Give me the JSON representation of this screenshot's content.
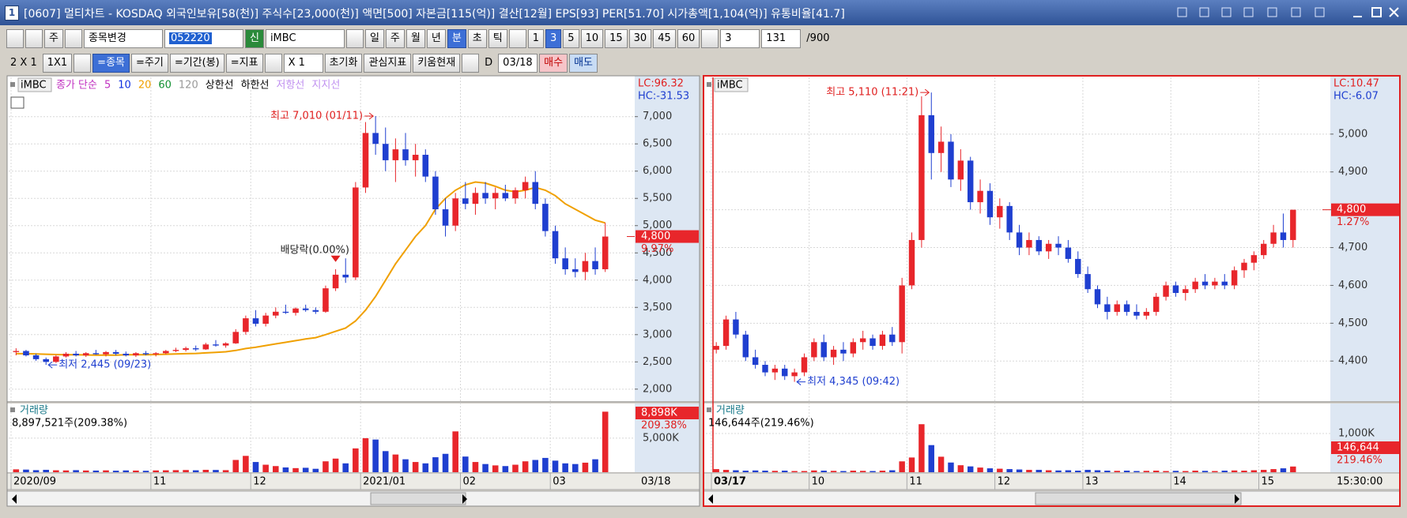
{
  "window": {
    "number": "1",
    "title": "[0607] 멀티차트 - KOSDAQ 외국인보유[58(천)] 주식수[23,000(천)] 액면[500] 자본금[115(억)] 결산[12월] EPS[93] PER[51.70] 시가총액[1,104(억)] 유통비율[41.7]"
  },
  "toolbar1": {
    "items": [
      "주",
      "종목변경",
      "052220",
      "신",
      "iMBC",
      "일",
      "주",
      "월",
      "년",
      "분",
      "초",
      "틱",
      "1",
      "3",
      "5",
      "10",
      "15",
      "30",
      "45",
      "60",
      "3",
      "131",
      "/900"
    ]
  },
  "toolbar2": {
    "items": [
      "2 X 1",
      "1X1",
      "=종목",
      "=주기",
      "=기간(봉)",
      "=지표",
      "X 1",
      "초기화",
      "관심지표",
      "키움현재",
      "D",
      "03/18",
      "매수",
      "매도"
    ]
  },
  "left": {
    "type": "candlestick",
    "name": "iMBC",
    "legend": [
      "종가 단순",
      "5",
      "10",
      "20",
      "60",
      "120",
      "상한선",
      "하한선",
      "저항선",
      "지지선"
    ],
    "legend_colors": [
      "#c030c0",
      "#c030c0",
      "#1030e0",
      "#f0a000",
      "#109030",
      "#999999",
      "#000000",
      "#000000",
      "#c090f0",
      "#c090f0"
    ],
    "lc": "LC:96.32",
    "hc": "HC:-31.53",
    "up_color": "#e8262b",
    "down_color": "#1f3fd0",
    "ylim": [
      1780,
      7720
    ],
    "yticks": [
      {
        "value": 2000,
        "label": "2,000"
      },
      {
        "value": 2500,
        "label": "2,500"
      },
      {
        "value": 3000,
        "label": "3,000"
      },
      {
        "value": 3500,
        "label": "3,500"
      },
      {
        "value": 4000,
        "label": "4,000"
      },
      {
        "value": 4500,
        "label": "4,500"
      },
      {
        "value": 5000,
        "label": "5,000"
      },
      {
        "value": 5500,
        "label": "5,500"
      },
      {
        "value": 6000,
        "label": "6,000"
      },
      {
        "value": 6500,
        "label": "6,500"
      },
      {
        "value": 7000,
        "label": "7,000"
      }
    ],
    "categories": [
      "2020/09",
      null,
      null,
      null,
      null,
      null,
      null,
      null,
      null,
      null,
      null,
      null,
      null,
      null,
      "11",
      null,
      null,
      null,
      null,
      null,
      null,
      null,
      null,
      null,
      "12",
      null,
      null,
      null,
      null,
      null,
      null,
      null,
      null,
      null,
      null,
      "2021/01",
      null,
      null,
      null,
      null,
      null,
      null,
      null,
      null,
      null,
      "02",
      null,
      null,
      null,
      null,
      null,
      null,
      null,
      null,
      "03",
      null,
      null,
      null,
      null,
      null
    ],
    "date_end": "03/18",
    "candles": [
      [
        2680,
        2750,
        2620,
        2700
      ],
      [
        2700,
        2720,
        2600,
        2620
      ],
      [
        2620,
        2650,
        2520,
        2550
      ],
      [
        2550,
        2580,
        2445,
        2500
      ],
      [
        2500,
        2620,
        2480,
        2600
      ],
      [
        2600,
        2680,
        2580,
        2650
      ],
      [
        2650,
        2700,
        2600,
        2620
      ],
      [
        2620,
        2680,
        2590,
        2660
      ],
      [
        2660,
        2720,
        2630,
        2640
      ],
      [
        2640,
        2700,
        2600,
        2680
      ],
      [
        2680,
        2720,
        2620,
        2650
      ],
      [
        2650,
        2690,
        2600,
        2620
      ],
      [
        2620,
        2680,
        2590,
        2660
      ],
      [
        2660,
        2700,
        2620,
        2640
      ],
      [
        2640,
        2680,
        2600,
        2660
      ],
      [
        2660,
        2720,
        2640,
        2700
      ],
      [
        2700,
        2760,
        2680,
        2720
      ],
      [
        2720,
        2780,
        2690,
        2750
      ],
      [
        2750,
        2800,
        2700,
        2730
      ],
      [
        2730,
        2850,
        2720,
        2820
      ],
      [
        2820,
        2900,
        2780,
        2800
      ],
      [
        2800,
        2860,
        2760,
        2840
      ],
      [
        2840,
        3100,
        2830,
        3050
      ],
      [
        3050,
        3350,
        3000,
        3300
      ],
      [
        3300,
        3450,
        3150,
        3200
      ],
      [
        3200,
        3400,
        3150,
        3350
      ],
      [
        3350,
        3500,
        3300,
        3420
      ],
      [
        3420,
        3550,
        3380,
        3400
      ],
      [
        3400,
        3500,
        3350,
        3480
      ],
      [
        3480,
        3550,
        3420,
        3450
      ],
      [
        3450,
        3500,
        3380,
        3420
      ],
      [
        3420,
        3900,
        3400,
        3850
      ],
      [
        3850,
        4200,
        3800,
        4100
      ],
      [
        4100,
        4400,
        3950,
        4050
      ],
      [
        4050,
        5800,
        4000,
        5700
      ],
      [
        5700,
        6900,
        5600,
        6700
      ],
      [
        6700,
        7010,
        6300,
        6500
      ],
      [
        6500,
        6800,
        6000,
        6200
      ],
      [
        6200,
        6600,
        5800,
        6400
      ],
      [
        6400,
        6700,
        6100,
        6200
      ],
      [
        6200,
        6500,
        5900,
        6300
      ],
      [
        6300,
        6400,
        5800,
        5900
      ],
      [
        5900,
        6000,
        5200,
        5300
      ],
      [
        5300,
        5500,
        4800,
        5000
      ],
      [
        5000,
        5600,
        4900,
        5500
      ],
      [
        5500,
        5800,
        5300,
        5400
      ],
      [
        5400,
        5700,
        5200,
        5600
      ],
      [
        5600,
        5800,
        5400,
        5500
      ],
      [
        5500,
        5700,
        5300,
        5600
      ],
      [
        5600,
        5750,
        5450,
        5500
      ],
      [
        5500,
        5700,
        5400,
        5650
      ],
      [
        5650,
        5900,
        5500,
        5800
      ],
      [
        5800,
        6000,
        5300,
        5400
      ],
      [
        5400,
        5500,
        4800,
        4900
      ],
      [
        4900,
        5000,
        4300,
        4400
      ],
      [
        4400,
        4600,
        4100,
        4200
      ],
      [
        4200,
        4400,
        4050,
        4150
      ],
      [
        4150,
        4500,
        4000,
        4350
      ],
      [
        4350,
        4600,
        4100,
        4200
      ],
      [
        4200,
        5050,
        4150,
        4800
      ]
    ],
    "ma": {
      "color": "#f0a000",
      "values": [
        2650,
        2650,
        2645,
        2640,
        2635,
        2630,
        2630,
        2628,
        2625,
        2625,
        2625,
        2630,
        2630,
        2632,
        2635,
        2640,
        2645,
        2650,
        2655,
        2665,
        2675,
        2685,
        2710,
        2745,
        2770,
        2800,
        2830,
        2860,
        2890,
        2920,
        2945,
        3000,
        3060,
        3120,
        3250,
        3450,
        3700,
        4000,
        4300,
        4550,
        4800,
        5000,
        5300,
        5500,
        5650,
        5750,
        5800,
        5780,
        5720,
        5650,
        5620,
        5650,
        5700,
        5650,
        5550,
        5400,
        5300,
        5200,
        5100,
        5050
      ]
    },
    "last": {
      "value": 4800,
      "label": "4,800"
    },
    "change": "9.97%",
    "annotations": {
      "high": "최고 7,010 (01/11)",
      "low": "최저 2,445 (09/23)",
      "event": "배당락(0.00%)"
    },
    "volume": {
      "title": "거래량",
      "summary": "8,897,521주(209.38%)",
      "ylim": [
        0,
        10100
      ],
      "yticks": [
        {
          "value": 5000,
          "label": "5,000K"
        }
      ],
      "last_label": "8,898K",
      "ratio": "209.38%",
      "values": [
        420,
        380,
        300,
        350,
        280,
        260,
        300,
        250,
        240,
        270,
        220,
        260,
        240,
        210,
        260,
        280,
        300,
        320,
        280,
        350,
        330,
        300,
        1800,
        2400,
        1500,
        1100,
        900,
        700,
        600,
        650,
        500,
        1600,
        2000,
        1300,
        3500,
        5000,
        4800,
        3100,
        2600,
        1900,
        1500,
        1300,
        2200,
        2700,
        6000,
        2300,
        1500,
        1200,
        1000,
        900,
        1100,
        1600,
        1800,
        2100,
        1700,
        1300,
        1200,
        1400,
        1900,
        8898
      ]
    }
  },
  "right": {
    "type": "candlestick",
    "name": "iMBC",
    "lc": "LC:10.47",
    "hc": "HC:-6.07",
    "up_color": "#e8262b",
    "down_color": "#1f3fd0",
    "ylim": [
      4294,
      5150
    ],
    "yticks": [
      {
        "value": 4400,
        "label": "4,400"
      },
      {
        "value": 4500,
        "label": "4,500"
      },
      {
        "value": 4600,
        "label": "4,600"
      },
      {
        "value": 4700,
        "label": "4,700"
      },
      {
        "value": 4800,
        "label": "4,800"
      },
      {
        "value": 4900,
        "label": "4,900"
      },
      {
        "value": 5000,
        "label": "5,000"
      }
    ],
    "categories": [
      "03/17",
      null,
      null,
      null,
      null,
      null,
      null,
      null,
      null,
      null,
      "10",
      null,
      null,
      null,
      null,
      null,
      null,
      null,
      null,
      null,
      "11",
      null,
      null,
      null,
      null,
      null,
      null,
      null,
      null,
      "12",
      null,
      null,
      null,
      null,
      null,
      null,
      null,
      null,
      "13",
      null,
      null,
      null,
      null,
      null,
      null,
      null,
      null,
      "14",
      null,
      null,
      null,
      null,
      null,
      null,
      null,
      null,
      "15",
      null,
      null,
      null
    ],
    "date_end": "15:30:00",
    "candles": [
      [
        4430,
        4450,
        4420,
        4440
      ],
      [
        4440,
        4520,
        4430,
        4510
      ],
      [
        4510,
        4530,
        4460,
        4470
      ],
      [
        4470,
        4480,
        4400,
        4410
      ],
      [
        4410,
        4430,
        4380,
        4390
      ],
      [
        4390,
        4400,
        4360,
        4370
      ],
      [
        4370,
        4390,
        4350,
        4380
      ],
      [
        4380,
        4390,
        4350,
        4360
      ],
      [
        4360,
        4380,
        4345,
        4370
      ],
      [
        4370,
        4420,
        4360,
        4410
      ],
      [
        4410,
        4460,
        4400,
        4450
      ],
      [
        4450,
        4470,
        4400,
        4410
      ],
      [
        4410,
        4440,
        4390,
        4430
      ],
      [
        4430,
        4450,
        4400,
        4420
      ],
      [
        4420,
        4460,
        4410,
        4450
      ],
      [
        4450,
        4480,
        4430,
        4460
      ],
      [
        4460,
        4470,
        4430,
        4440
      ],
      [
        4440,
        4480,
        4430,
        4470
      ],
      [
        4470,
        4490,
        4440,
        4450
      ],
      [
        4450,
        4620,
        4420,
        4600
      ],
      [
        4600,
        4740,
        4590,
        4720
      ],
      [
        4720,
        5100,
        4700,
        5050
      ],
      [
        5050,
        5110,
        4880,
        4950
      ],
      [
        4950,
        5020,
        4900,
        4980
      ],
      [
        4980,
        5000,
        4860,
        4880
      ],
      [
        4880,
        4960,
        4850,
        4930
      ],
      [
        4930,
        4940,
        4800,
        4820
      ],
      [
        4820,
        4880,
        4790,
        4850
      ],
      [
        4850,
        4870,
        4760,
        4780
      ],
      [
        4780,
        4830,
        4750,
        4810
      ],
      [
        4810,
        4820,
        4720,
        4740
      ],
      [
        4740,
        4760,
        4680,
        4700
      ],
      [
        4700,
        4740,
        4680,
        4720
      ],
      [
        4720,
        4730,
        4680,
        4690
      ],
      [
        4690,
        4720,
        4670,
        4710
      ],
      [
        4710,
        4730,
        4680,
        4700
      ],
      [
        4700,
        4720,
        4660,
        4670
      ],
      [
        4670,
        4690,
        4620,
        4630
      ],
      [
        4630,
        4650,
        4580,
        4590
      ],
      [
        4590,
        4600,
        4540,
        4550
      ],
      [
        4550,
        4570,
        4510,
        4530
      ],
      [
        4530,
        4560,
        4520,
        4550
      ],
      [
        4550,
        4560,
        4520,
        4530
      ],
      [
        4530,
        4550,
        4510,
        4520
      ],
      [
        4520,
        4540,
        4510,
        4530
      ],
      [
        4530,
        4580,
        4520,
        4570
      ],
      [
        4570,
        4610,
        4560,
        4600
      ],
      [
        4600,
        4610,
        4570,
        4580
      ],
      [
        4580,
        4600,
        4560,
        4590
      ],
      [
        4590,
        4620,
        4580,
        4610
      ],
      [
        4610,
        4630,
        4590,
        4600
      ],
      [
        4600,
        4620,
        4590,
        4610
      ],
      [
        4610,
        4630,
        4590,
        4600
      ],
      [
        4600,
        4650,
        4590,
        4640
      ],
      [
        4640,
        4670,
        4620,
        4660
      ],
      [
        4660,
        4690,
        4640,
        4680
      ],
      [
        4680,
        4720,
        4670,
        4710
      ],
      [
        4710,
        4760,
        4700,
        4740
      ],
      [
        4740,
        4790,
        4700,
        4720
      ],
      [
        4720,
        4800,
        4700,
        4800
      ]
    ],
    "last": {
      "value": 4800,
      "label": "4,800"
    },
    "change": "1.27%",
    "annotations": {
      "high": "최고 5,110 (11:21)",
      "low": "최저 4,345 (09:42)"
    },
    "volume": {
      "title": "거래량",
      "summary": "146,644주(219.46%)",
      "ylim": [
        0,
        1775
      ],
      "yticks": [
        {
          "value": 1000,
          "label": "1,000K"
        }
      ],
      "last_label": "146,644",
      "ratio": "219.46%",
      "values": [
        80,
        60,
        50,
        40,
        45,
        40,
        35,
        40,
        30,
        30,
        45,
        40,
        35,
        30,
        40,
        35,
        30,
        40,
        50,
        280,
        380,
        1240,
        700,
        400,
        250,
        180,
        150,
        120,
        100,
        90,
        80,
        70,
        60,
        60,
        50,
        45,
        50,
        40,
        60,
        50,
        40,
        35,
        40,
        30,
        35,
        40,
        30,
        35,
        30,
        40,
        35,
        30,
        40,
        45,
        40,
        50,
        60,
        80,
        100,
        146.644
      ]
    }
  }
}
